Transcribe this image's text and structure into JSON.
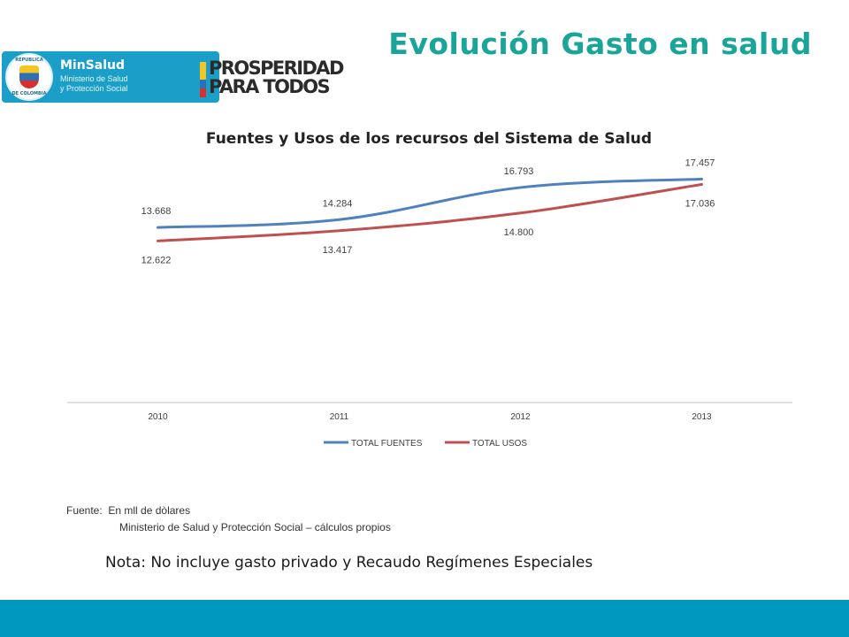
{
  "slide": {
    "title": "Evolución Gasto en salud",
    "logos": {
      "seal_top": "REPUBLICA",
      "seal_bottom": "DE COLOMBIA",
      "minsalud_name": "MinSalud",
      "minsalud_line1": "Ministerio de Salud",
      "minsalud_line2": "y Protección Social",
      "prosperidad_line1": "PROSPERIDAD",
      "prosperidad_line2": "PARA TODOS"
    },
    "source_label": "Fuente:",
    "source_units": "En mll de dòlares",
    "source_line2": "Ministerio de Salud y Protección Social – cálculos propios",
    "note": "Nota: No incluye gasto privado y Recaudo Regímenes Especiales",
    "colors": {
      "title": "#1aa59b",
      "footer": "#0098bf",
      "brand_box": "#1b9fc8"
    }
  },
  "chart_data": {
    "type": "line",
    "title": "Fuentes y Usos de los recursos del Sistema de Salud",
    "categories": [
      "2010",
      "2011",
      "2012",
      "2013"
    ],
    "series": [
      {
        "name": "TOTAL FUENTES",
        "values": [
          13668,
          14284,
          16793,
          17457
        ],
        "labels": [
          "13.668",
          "14.284",
          "16.793",
          "17.457"
        ],
        "color": "#4f81bd",
        "label_position": "above"
      },
      {
        "name": "TOTAL USOS",
        "values": [
          12622,
          13417,
          14800,
          17036
        ],
        "labels": [
          "12.622",
          "13.417",
          "14.800",
          "17.036"
        ],
        "color": "#c0504d",
        "label_position": "below"
      }
    ],
    "ylim": [
      0,
      19000
    ],
    "y_axis_visible": false,
    "grid": false,
    "legend": "bottom-center",
    "xlabel": "",
    "ylabel": ""
  }
}
